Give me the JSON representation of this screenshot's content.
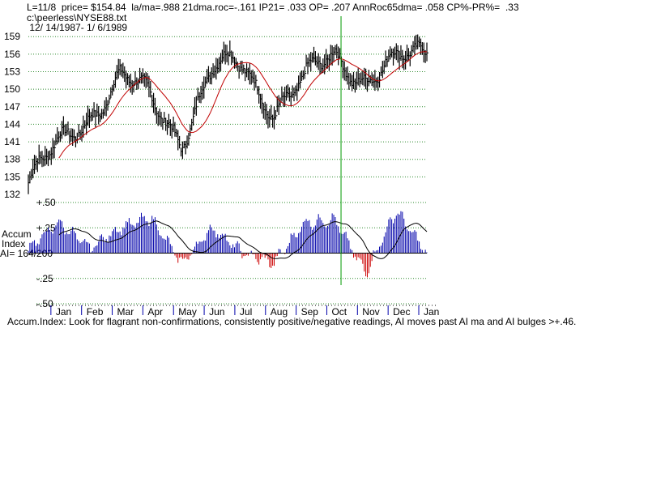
{
  "header": {
    "line1": "L=11/8  price= $154.84  la/ma=.988 21dma.roc=-.161 IP21= .033 OP= .207 AnnRoc65dma= .058 CP%-PR%=  .33",
    "file": "c:\\peerless\\NYSE88.txt",
    "range": " 12/ 14/1987- 1/ 6/1989"
  },
  "footnote": "Accum.Index: Look for flagrant non-confirmations, consistently positive/negative readings, AI moves past AI ma and AI bulges >+.46.",
  "chart_data": [
    {
      "type": "ohlc",
      "title": "",
      "ylim": [
        132,
        160
      ],
      "yticks": [
        "159",
        "156",
        "153",
        "150",
        "147",
        "144",
        "141",
        "138",
        "135",
        "132"
      ],
      "ytick_values": [
        159,
        156,
        153,
        150,
        147,
        144,
        141,
        138,
        135,
        132
      ],
      "grid": true,
      "grid_style": "dotted-green",
      "moving_average_color": "#c00000",
      "marker_line": {
        "x_month_index": 10.2,
        "color": "#009900"
      },
      "month_labels": [
        "Jan",
        "Feb",
        "Mar",
        "Apr",
        "May",
        "Jun",
        "Jul",
        "Aug",
        "Sep",
        "Oct",
        "Nov",
        "Dec",
        "Jan"
      ],
      "price_close_by_month_start": [
        {
          "month": "Dec",
          "close": 134
        },
        {
          "month": "Jan",
          "close": 140
        },
        {
          "month": "Feb",
          "close": 146
        },
        {
          "month": "Mar",
          "close": 152
        },
        {
          "month": "Apr",
          "close": 148
        },
        {
          "month": "May",
          "close": 142
        },
        {
          "month": "Jun",
          "close": 153
        },
        {
          "month": "Jul",
          "close": 154
        },
        {
          "month": "Aug",
          "close": 147
        },
        {
          "month": "Sep",
          "close": 151
        },
        {
          "month": "Oct",
          "close": 156
        },
        {
          "month": "Nov",
          "close": 152
        },
        {
          "month": "Dec",
          "close": 154
        },
        {
          "month": "Jan",
          "close": 157
        }
      ]
    },
    {
      "type": "area",
      "label_lines": [
        "Accum",
        "Index",
        "AI= 164/200"
      ],
      "ylim": [
        -0.5,
        0.5
      ],
      "yticks": [
        "+.50",
        "+.25",
        "-.25",
        "-.50"
      ],
      "ytick_values": [
        0.5,
        0.25,
        -0.25,
        -0.5
      ],
      "grid": true,
      "positive_color": "#0000aa",
      "negative_color": "#cc0000",
      "ma_color": "#000000",
      "accum_by_month": [
        {
          "month": "Dec",
          "value": 0.05
        },
        {
          "month": "Jan",
          "value": 0.3
        },
        {
          "month": "Feb",
          "value": 0.05
        },
        {
          "month": "Mar",
          "value": 0.25
        },
        {
          "month": "Apr",
          "value": 0.35
        },
        {
          "month": "May",
          "value": -0.1
        },
        {
          "month": "Jun",
          "value": 0.25
        },
        {
          "month": "Jul",
          "value": 0.0
        },
        {
          "month": "Aug",
          "value": -0.1
        },
        {
          "month": "Sep",
          "value": 0.3
        },
        {
          "month": "Oct",
          "value": 0.33
        },
        {
          "month": "Nov",
          "value": -0.2
        },
        {
          "month": "Dec",
          "value": 0.42
        },
        {
          "month": "Jan",
          "value": 0.0
        }
      ]
    }
  ]
}
